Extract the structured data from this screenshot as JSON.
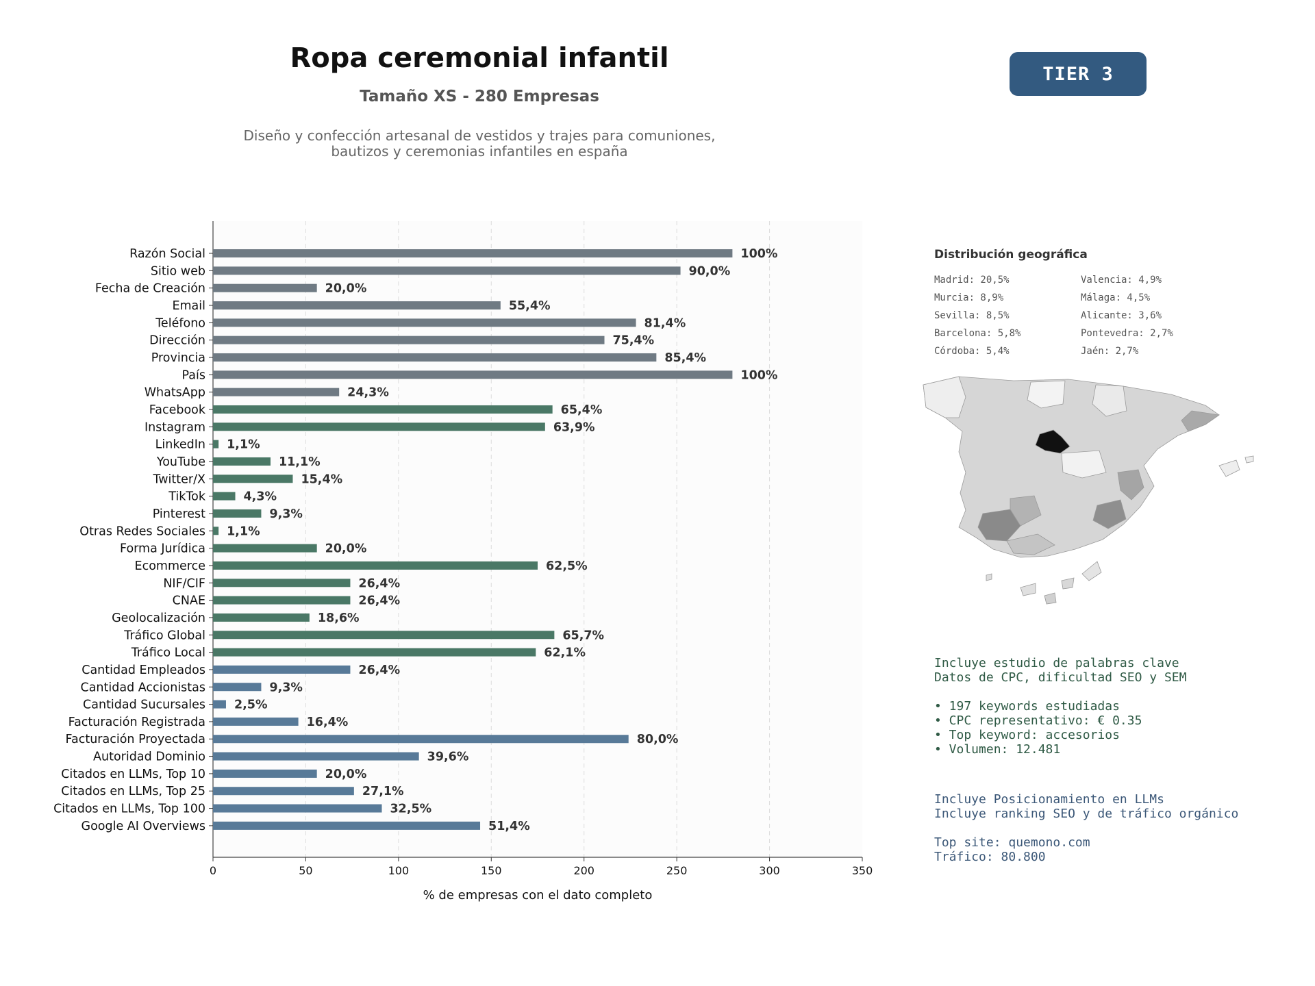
{
  "header": {
    "title": "Ropa ceremonial infantil",
    "subtitle": "Tamaño XS - 280 Empresas",
    "description_lines": [
      "Diseño y confección artesanal de vestidos y trajes para comuniones,",
      "bautizos y ceremonias infantiles en españa"
    ],
    "tier_badge": "TIER 3"
  },
  "chart_data": {
    "type": "bar",
    "orientation": "horizontal",
    "xlabel": "% de empresas con el dato completo",
    "xlim": [
      0,
      350
    ],
    "xticks": [
      0,
      50,
      100,
      150,
      200,
      250,
      300,
      350
    ],
    "grid": "vertical dashed",
    "categories": [
      "Razón Social",
      "Sitio web",
      "Fecha de Creación",
      "Email",
      "Teléfono",
      "Dirección",
      "Provincia",
      "País",
      "WhatsApp",
      "Facebook",
      "Instagram",
      "LinkedIn",
      "YouTube",
      "Twitter/X",
      "TikTok",
      "Pinterest",
      "Otras Redes Sociales",
      "Forma Jurídica",
      "Ecommerce",
      "NIF/CIF",
      "CNAE",
      "Geolocalización",
      "Tráfico Global",
      "Tráfico Local",
      "Cantidad Empleados",
      "Cantidad Accionistas",
      "Cantidad Sucursales",
      "Facturación Registrada",
      "Facturación Proyectada",
      "Autoridad Dominio",
      "Citados en LLMs, Top 10",
      "Citados en LLMs, Top 25",
      "Citados en LLMs, Top 100",
      "Google AI Overviews"
    ],
    "values": [
      280,
      252,
      56,
      155,
      228,
      211,
      239,
      280,
      68,
      183,
      179,
      3,
      31,
      43,
      12,
      26,
      3,
      56,
      175,
      74,
      74,
      52,
      184,
      174,
      74,
      26,
      7,
      46,
      224,
      111,
      56,
      76,
      91,
      144
    ],
    "value_labels": [
      "100%",
      "90,0%",
      "20,0%",
      "55,4%",
      "81,4%",
      "75,4%",
      "85,4%",
      "100%",
      "24,3%",
      "65,4%",
      "63,9%",
      "1,1%",
      "11,1%",
      "15,4%",
      "4,3%",
      "9,3%",
      "1,1%",
      "20,0%",
      "62,5%",
      "26,4%",
      "26,4%",
      "18,6%",
      "65,7%",
      "62,1%",
      "26,4%",
      "9,3%",
      "2,5%",
      "16,4%",
      "80,0%",
      "39,6%",
      "20,0%",
      "27,1%",
      "32,5%",
      "51,4%"
    ],
    "groups": [
      {
        "color": "#6f7a83",
        "from": 0,
        "to": 8
      },
      {
        "color": "#4a7866",
        "from": 9,
        "to": 23
      },
      {
        "color": "#587a98",
        "from": 24,
        "to": 33
      }
    ]
  },
  "geo": {
    "title": "Distribución geográfica",
    "items": [
      "Madrid: 20,5%",
      "Valencia: 4,9%",
      "Murcia: 8,9%",
      "Málaga: 4,5%",
      "Sevilla: 8,5%",
      "Alicante: 3,6%",
      "Barcelona: 5,8%",
      "Pontevedra: 2,7%",
      "Córdoba: 5,4%",
      "Jaén: 2,7%"
    ]
  },
  "keywords_block": {
    "lines": [
      "Incluye estudio de palabras clave",
      "Datos de CPC, dificultad SEO y SEM",
      "",
      "• 197 keywords estudiadas",
      "• CPC representativo: € 0.35",
      "• Top keyword: accesorios",
      "• Volumen: 12.481"
    ]
  },
  "llm_block": {
    "lines": [
      "Incluye Posicionamiento en LLMs",
      "Incluye ranking SEO y de tráfico orgánico",
      "",
      "Top site: quemono.com",
      "Tráfico: 80.800"
    ]
  },
  "colors": {
    "badge": "#335a80",
    "map_highlight": "#111111",
    "map_dark": "#888888",
    "map_mid": "#b5b5b5",
    "map_light": "#d6d6d6",
    "map_pale": "#eeeeee"
  }
}
